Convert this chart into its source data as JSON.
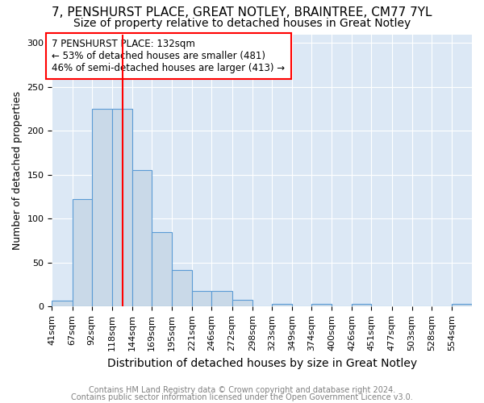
{
  "title1": "7, PENSHURST PLACE, GREAT NOTLEY, BRAINTREE, CM77 7YL",
  "title2": "Size of property relative to detached houses in Great Notley",
  "xlabel": "Distribution of detached houses by size in Great Notley",
  "ylabel": "Number of detached properties",
  "bin_labels": [
    "41sqm",
    "67sqm",
    "92sqm",
    "118sqm",
    "144sqm",
    "169sqm",
    "195sqm",
    "221sqm",
    "246sqm",
    "272sqm",
    "298sqm",
    "323sqm",
    "349sqm",
    "374sqm",
    "400sqm",
    "426sqm",
    "451sqm",
    "477sqm",
    "503sqm",
    "528sqm",
    "554sqm"
  ],
  "bar_heights": [
    7,
    122,
    225,
    225,
    155,
    85,
    42,
    18,
    18,
    8,
    0,
    3,
    0,
    3,
    0,
    3,
    0,
    0,
    0,
    0,
    3
  ],
  "bar_color": "#c9d9e8",
  "bar_edge_color": "#5b9bd5",
  "vline_x": 132,
  "annotation_title": "7 PENSHURST PLACE: 132sqm",
  "annotation_line1": "← 53% of detached houses are smaller (481)",
  "annotation_line2": "46% of semi-detached houses are larger (413) →",
  "ylim": [
    0,
    310
  ],
  "yticks": [
    0,
    50,
    100,
    150,
    200,
    250,
    300
  ],
  "footer1": "Contains HM Land Registry data © Crown copyright and database right 2024.",
  "footer2": "Contains public sector information licensed under the Open Government Licence v3.0.",
  "bin_edges": [
    41,
    67,
    92,
    118,
    144,
    169,
    195,
    221,
    246,
    272,
    298,
    323,
    349,
    374,
    400,
    426,
    451,
    477,
    503,
    528,
    554,
    580
  ],
  "bg_color": "#dce8f5",
  "grid_color": "white",
  "title1_fontsize": 11,
  "title2_fontsize": 10,
  "xlabel_fontsize": 10,
  "ylabel_fontsize": 9,
  "tick_fontsize": 8,
  "footer_fontsize": 7,
  "annot_fontsize": 8.5
}
